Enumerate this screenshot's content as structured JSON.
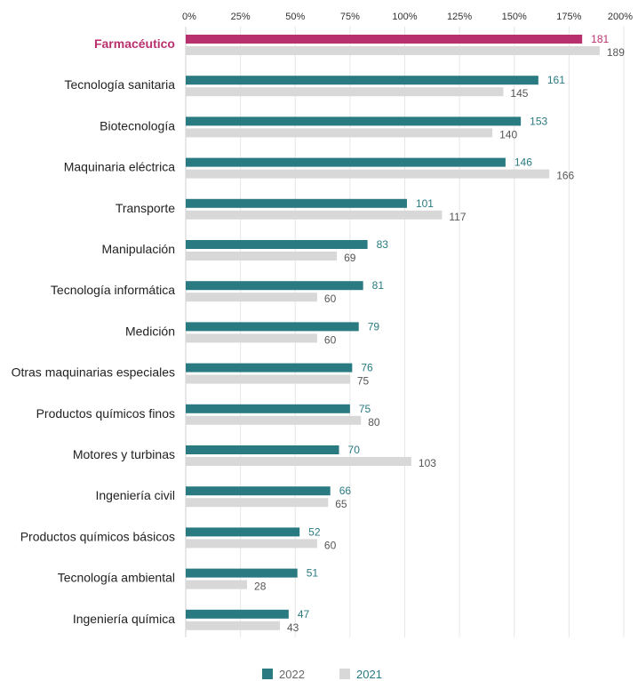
{
  "chart_data": {
    "type": "bar",
    "orientation": "horizontal",
    "x_axis": {
      "ticks": [
        "0%",
        "25%",
        "50%",
        "75%",
        "100%",
        "125%",
        "150%",
        "175%",
        "200%"
      ],
      "range": [
        0,
        200
      ],
      "position": "top"
    },
    "categories": [
      "Farmacéutico",
      "Tecnología sanitaria",
      "Biotecnología",
      "Maquinaria eléctrica",
      "Transporte",
      "Manipulación",
      "Tecnología informática",
      "Medición",
      "Otras maquinarias especiales",
      "Productos químicos finos",
      "Motores y turbinas",
      "Ingeniería civil",
      "Productos químicos básicos",
      "Tecnología ambiental",
      "Ingeniería química"
    ],
    "highlighted_category": "Farmacéutico",
    "series": [
      {
        "name": "2022",
        "values": [
          181,
          161,
          153,
          146,
          101,
          83,
          81,
          79,
          76,
          75,
          70,
          66,
          52,
          51,
          47
        ]
      },
      {
        "name": "2021",
        "values": [
          189,
          145,
          140,
          166,
          117,
          69,
          60,
          60,
          75,
          80,
          103,
          65,
          60,
          28,
          43
        ]
      }
    ],
    "legend_position": "bottom-center",
    "grid": true
  },
  "colors": {
    "series_2022": "#2a7a82",
    "series_2021": "#d8d8d8",
    "highlight": "#b8316e",
    "label_2021": "#555555",
    "gridline": "#e6e6e6"
  }
}
